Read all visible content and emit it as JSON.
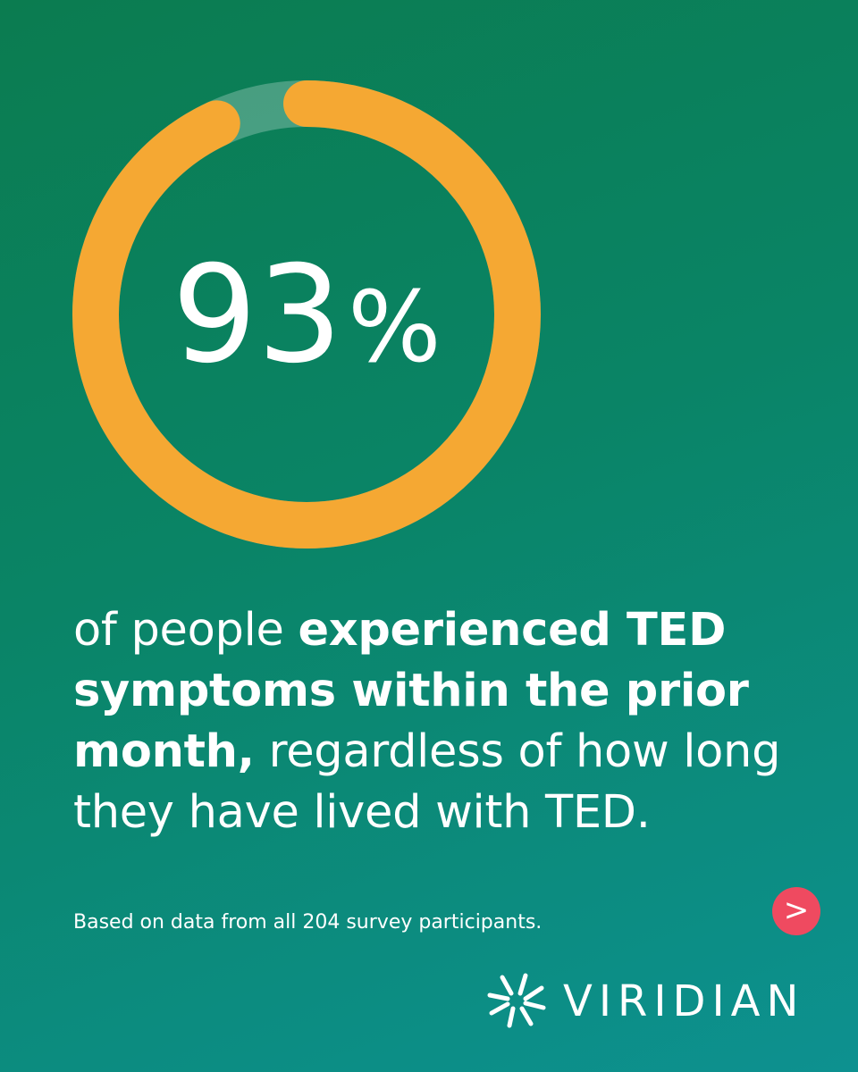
{
  "chart_data": {
    "type": "donut",
    "values": [
      93
    ],
    "value_labels": [
      "93%"
    ],
    "ylim": [
      0,
      100
    ],
    "color": "#f5a833"
  },
  "caption": [
    {
      "text": "of people ",
      "bold": false
    },
    {
      "text": "experienced TED symptoms within the prior month,",
      "bold": true
    },
    {
      "text": " regardless of how long they have lived with TED.",
      "bold": false
    }
  ],
  "footnote": "Based on data from all 204 survey participants.",
  "next_button": ">",
  "logo": "VIRIDIAN"
}
